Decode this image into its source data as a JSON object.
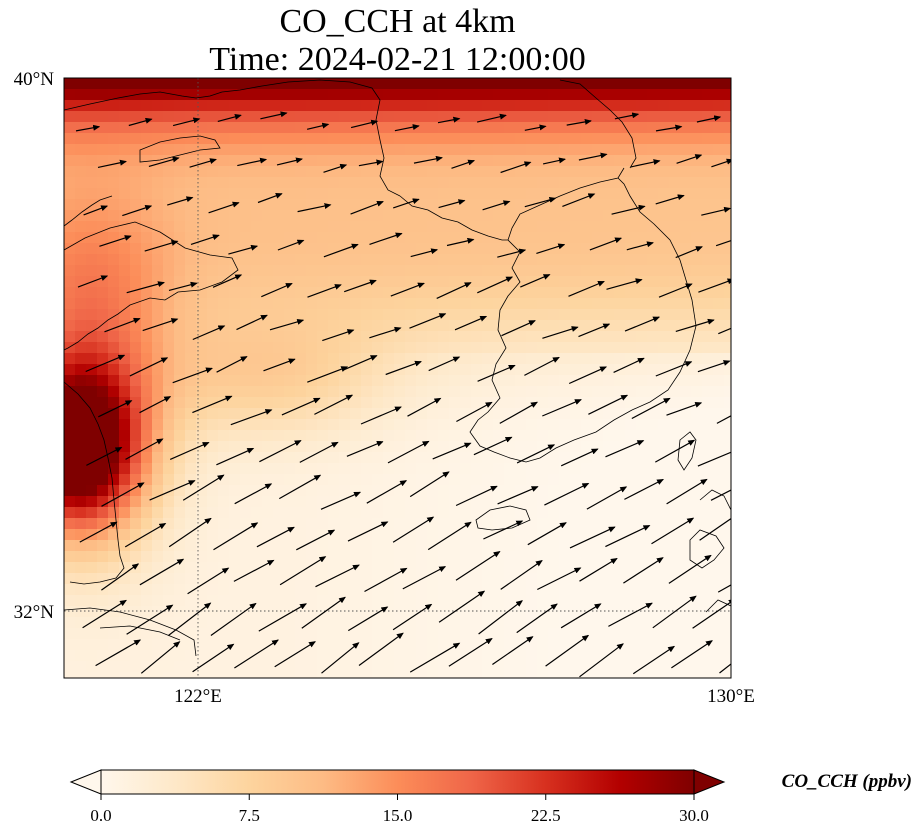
{
  "title": {
    "line1": "CO_CCH at 4km",
    "line2": "Time: 2024-02-21 12:00:00"
  },
  "map": {
    "lon_range": [
      119,
      130
    ],
    "lat_range": [
      31,
      40
    ],
    "lat_ticks": [
      {
        "value": 40,
        "label": "40°N"
      },
      {
        "value": 32,
        "label": "32°N"
      }
    ],
    "lon_ticks": [
      {
        "value": 122,
        "label": "122°E"
      },
      {
        "value": 130,
        "label": "130°E"
      }
    ],
    "gridlines": "dotted",
    "field": "CO_CCH concentration (ppbv), highest (≥30) along the northern edge and western coast, lowest over the sea to the south-east",
    "vectors": "wind arrows pointing mostly east-northeast",
    "coastlines": true
  },
  "colorbar": {
    "label": "CO_CCH (ppbv)",
    "min": 0.0,
    "max": 30.0,
    "ticks": [
      "0.0",
      "7.5",
      "15.0",
      "22.5",
      "30.0"
    ],
    "extend": "both",
    "colormap": [
      "#fff7ec",
      "#fee8c8",
      "#fdd49e",
      "#fdbb84",
      "#fc8d59",
      "#ef6548",
      "#d7301f",
      "#b30000",
      "#7f0000"
    ]
  }
}
